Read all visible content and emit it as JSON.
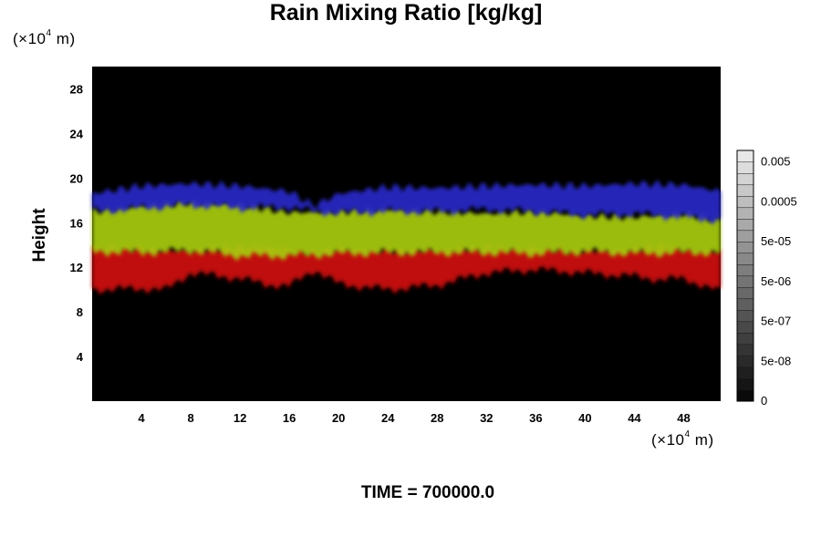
{
  "chart_data": {
    "type": "heatmap",
    "title": "Rain Mixing Ratio [kg/kg]",
    "ylabel": "Height",
    "xlabel": "",
    "x_unit_prefix": "(×10",
    "x_unit_exp": "4",
    "x_unit_suffix": " m)",
    "y_unit_prefix": "(×10",
    "y_unit_exp": "4",
    "y_unit_suffix": " m)",
    "xlim": [
      0,
      51
    ],
    "ylim": [
      0,
      30
    ],
    "x_ticks": [
      4,
      8,
      12,
      16,
      20,
      24,
      28,
      32,
      36,
      40,
      44,
      48
    ],
    "x_tick_labels": [
      "4",
      "8",
      "12",
      "16",
      "20",
      "24",
      "28",
      "32",
      "36",
      "40",
      "44",
      "48"
    ],
    "y_ticks": [
      4,
      8,
      12,
      16,
      20,
      24,
      28
    ],
    "y_tick_labels": [
      "4",
      "8",
      "12",
      "16",
      "20",
      "24",
      "28"
    ],
    "background": "#000000",
    "layers": [
      {
        "color": "#d01010",
        "height_range": [
          9.5,
          13.5
        ],
        "ref_x": [
          0,
          4,
          6,
          8,
          12,
          14,
          16,
          18,
          20,
          24,
          28,
          32,
          36,
          40,
          44,
          46,
          48,
          51
        ],
        "ref_top": [
          13.8,
          13.7,
          13.5,
          13.5,
          13.8,
          13.8,
          13.6,
          13.4,
          13.7,
          13.5,
          13.6,
          13.7,
          13.7,
          13.5,
          13.6,
          13.9,
          13.6,
          13.4
        ],
        "ref_bottom": [
          10.0,
          10.1,
          10.0,
          11.5,
          11.0,
          10.5,
          10.3,
          11.8,
          10.5,
          10.0,
          10.4,
          11.5,
          11.8,
          11.5,
          11.2,
          10.9,
          11.0,
          9.8
        ]
      },
      {
        "color": "#a8cc10",
        "height_range": [
          12.5,
          17.5
        ],
        "ref_x": [
          0,
          4,
          8,
          12,
          16,
          20,
          24,
          28,
          32,
          36,
          40,
          44,
          48,
          51
        ],
        "ref_top": [
          17.0,
          17.5,
          17.8,
          17.6,
          16.9,
          17.0,
          17.2,
          17.0,
          16.8,
          17.0,
          16.6,
          16.5,
          16.8,
          16.2
        ],
        "ref_bottom": [
          13.4,
          13.3,
          13.5,
          13.0,
          13.0,
          13.2,
          13.3,
          13.3,
          13.3,
          13.2,
          13.4,
          13.2,
          13.3,
          13.3
        ]
      },
      {
        "color": "#2828c8",
        "height_range": [
          16.5,
          20.0
        ],
        "ref_x": [
          0,
          4,
          8,
          12,
          16,
          18,
          20,
          24,
          28,
          32,
          36,
          40,
          44,
          48,
          51
        ],
        "ref_top": [
          18.6,
          19.3,
          19.5,
          19.3,
          18.8,
          17.5,
          18.6,
          19.2,
          19.1,
          19.3,
          19.4,
          19.3,
          19.5,
          19.4,
          18.8
        ],
        "ref_bottom": [
          17.0,
          17.3,
          17.6,
          17.3,
          17.4,
          17.0,
          16.9,
          17.0,
          17.0,
          17.2,
          17.0,
          16.7,
          16.8,
          16.5,
          16.2
        ]
      }
    ],
    "colorbar": {
      "labels": [
        "0",
        "5e-08",
        "5e-07",
        "5e-06",
        "5e-05",
        "0.0005",
        "0.005"
      ],
      "levels": 22,
      "colors": [
        "#000000",
        "#e8e8e8"
      ]
    }
  },
  "footer": {
    "time_label": "TIME = 700000.0"
  }
}
